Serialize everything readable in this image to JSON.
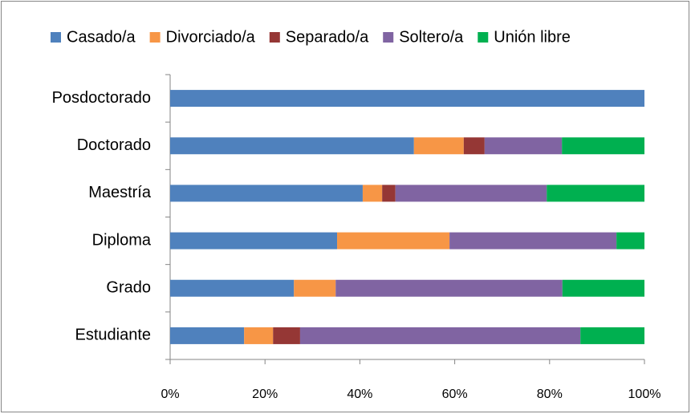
{
  "chart_data": {
    "type": "stacked_bar_horizontal",
    "categories": [
      "Posdoctorado",
      "Doctorado",
      "Maestría",
      "Diploma",
      "Grado",
      "Estudiante"
    ],
    "series": [
      {
        "name": "Casado/a",
        "color": "#4f81bd",
        "values": [
          100,
          51.4,
          40.6,
          35.2,
          26.1,
          15.6
        ]
      },
      {
        "name": "Divorciado/a",
        "color": "#f79646",
        "values": [
          0,
          10.5,
          4.1,
          23.7,
          8.8,
          6.1
        ]
      },
      {
        "name": "Separado/a",
        "color": "#953735",
        "values": [
          0,
          4.4,
          2.8,
          0,
          0,
          5.7
        ]
      },
      {
        "name": "Soltero/a",
        "color": "#8064a2",
        "values": [
          0,
          16.3,
          31.9,
          35.2,
          47.8,
          59.1
        ]
      },
      {
        "name": "Unión libre",
        "color": "#00b050",
        "values": [
          0,
          17.4,
          20.6,
          5.9,
          17.3,
          13.5
        ]
      }
    ],
    "xlim": [
      0,
      100
    ],
    "xticks": [
      {
        "value": 0,
        "label": "0%"
      },
      {
        "value": 20,
        "label": "20%"
      },
      {
        "value": 40,
        "label": "40%"
      },
      {
        "value": 60,
        "label": "60%"
      },
      {
        "value": 80,
        "label": "80%"
      },
      {
        "value": 100,
        "label": "100%"
      }
    ],
    "legend": "top",
    "grid": false
  }
}
